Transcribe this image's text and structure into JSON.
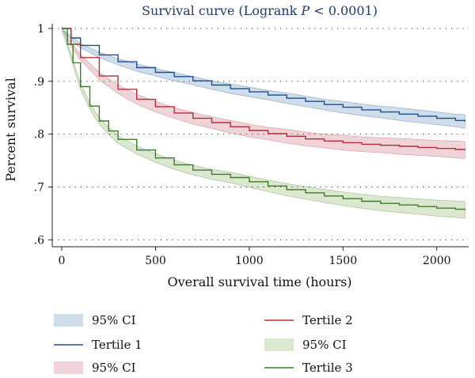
{
  "chart_data": {
    "type": "line",
    "title_prefix": "Survival curve (Logrank ",
    "title_p": "P",
    "title_suffix": " < 0.0001)",
    "xlabel": "Overall survival time (hours)",
    "ylabel": "Percent survival",
    "xlim": [
      0,
      2170
    ],
    "ylim": [
      0.59,
      1.0
    ],
    "x_ticks": [
      0,
      500,
      1000,
      1500,
      2000
    ],
    "x_tick_labels": [
      "0",
      "500",
      "1000",
      "1500",
      "2000"
    ],
    "y_ticks": [
      1.0,
      0.9,
      0.8,
      0.7,
      0.6
    ],
    "y_tick_labels": [
      "1",
      ".9",
      ".8",
      ".7",
      ".6"
    ],
    "grid": "horizontal-dotted",
    "legend_position": "bottom",
    "series": [
      {
        "name": "Tertile 1",
        "ci_label": "95% CI",
        "color": "#1f4e8c",
        "band_color": "#cfdcea",
        "x": [
          0,
          50,
          100,
          200,
          300,
          400,
          500,
          600,
          700,
          800,
          900,
          1000,
          1100,
          1200,
          1300,
          1400,
          1500,
          1600,
          1700,
          1800,
          1900,
          2000,
          2100,
          2150
        ],
        "y": [
          1.0,
          0.982,
          0.968,
          0.95,
          0.937,
          0.926,
          0.917,
          0.909,
          0.901,
          0.893,
          0.886,
          0.88,
          0.874,
          0.868,
          0.862,
          0.856,
          0.851,
          0.846,
          0.842,
          0.838,
          0.834,
          0.83,
          0.826,
          0.824
        ],
        "ci_width": [
          0,
          0.003,
          0.004,
          0.005,
          0.006,
          0.007,
          0.007,
          0.008,
          0.008,
          0.008,
          0.009,
          0.009,
          0.009,
          0.01,
          0.01,
          0.01,
          0.011,
          0.011,
          0.011,
          0.012,
          0.012,
          0.012,
          0.012,
          0.013
        ]
      },
      {
        "name": "Tertile 2",
        "ci_label": "95% CI",
        "color": "#b0303a",
        "band_color": "#f0d3d8",
        "x": [
          0,
          50,
          100,
          200,
          300,
          400,
          500,
          600,
          700,
          800,
          900,
          1000,
          1100,
          1200,
          1300,
          1400,
          1500,
          1600,
          1700,
          1800,
          1900,
          2000,
          2100,
          2150
        ],
        "y": [
          1.0,
          0.97,
          0.945,
          0.91,
          0.885,
          0.866,
          0.852,
          0.84,
          0.83,
          0.822,
          0.814,
          0.807,
          0.801,
          0.796,
          0.791,
          0.787,
          0.784,
          0.781,
          0.779,
          0.777,
          0.775,
          0.773,
          0.771,
          0.77
        ],
        "ci_width": [
          0,
          0.004,
          0.005,
          0.007,
          0.008,
          0.009,
          0.01,
          0.01,
          0.011,
          0.011,
          0.012,
          0.012,
          0.012,
          0.013,
          0.013,
          0.013,
          0.014,
          0.014,
          0.014,
          0.015,
          0.015,
          0.015,
          0.016,
          0.016
        ]
      },
      {
        "name": "Tertile 3",
        "ci_label": "95% CI",
        "color": "#3f7a2a",
        "band_color": "#dbe8cf",
        "x": [
          0,
          30,
          60,
          100,
          150,
          200,
          250,
          300,
          400,
          500,
          600,
          700,
          800,
          900,
          1000,
          1100,
          1200,
          1300,
          1400,
          1500,
          1600,
          1700,
          1800,
          1900,
          2000,
          2100,
          2150
        ],
        "y": [
          1.0,
          0.97,
          0.935,
          0.89,
          0.853,
          0.825,
          0.806,
          0.79,
          0.77,
          0.755,
          0.742,
          0.732,
          0.724,
          0.718,
          0.71,
          0.702,
          0.695,
          0.689,
          0.683,
          0.678,
          0.673,
          0.669,
          0.666,
          0.663,
          0.66,
          0.658,
          0.657
        ]
      }
    ],
    "legend": {
      "left": [
        {
          "kind": "band",
          "label": "95% CI",
          "series": 0
        },
        {
          "kind": "line",
          "label": "Tertile 1",
          "series": 0
        },
        {
          "kind": "band",
          "label": "95% CI",
          "series": 1
        }
      ],
      "right": [
        {
          "kind": "line",
          "label": "Tertile 2",
          "series": 1
        },
        {
          "kind": "band",
          "label": "95% CI",
          "series": 2
        },
        {
          "kind": "line",
          "label": "Tertile 3",
          "series": 2
        }
      ]
    }
  }
}
